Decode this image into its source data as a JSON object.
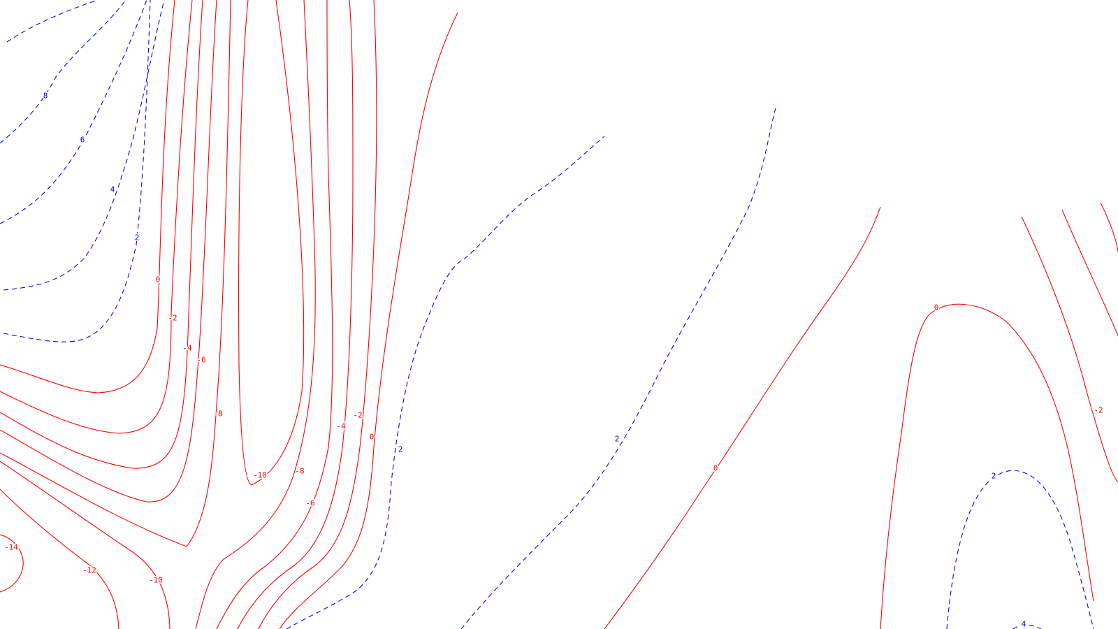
{
  "map": {
    "type": "contour",
    "colors": {
      "negative_and_zero_contours": "#ff0000",
      "positive_contours": "#0000ff",
      "background": "#ffffff"
    },
    "line_styles": {
      "negative_and_zero": "solid",
      "positive": "dashed"
    },
    "contour_levels": [
      -14,
      -12,
      -10,
      -8,
      -6,
      -4,
      -2,
      0,
      2,
      4,
      6,
      8
    ],
    "labels": {
      "p8": "8",
      "p6": "6",
      "p4a": "4",
      "p2a": "2",
      "z0a": "0",
      "n2a": "-2",
      "n4a": "-4",
      "n6a": "-6",
      "n8a": "-8",
      "n10a": "-10",
      "n8b": "-8",
      "n6b": "-6",
      "n4b": "-4",
      "n2b": "-2",
      "z0b": "0",
      "p2b": "2",
      "p2c": "2",
      "z0c": "0",
      "z0d": "0",
      "n2c": "-2",
      "p2d": "2",
      "p4b": "4",
      "n14": "-14",
      "n12": "-12",
      "n10b": "-10"
    }
  }
}
